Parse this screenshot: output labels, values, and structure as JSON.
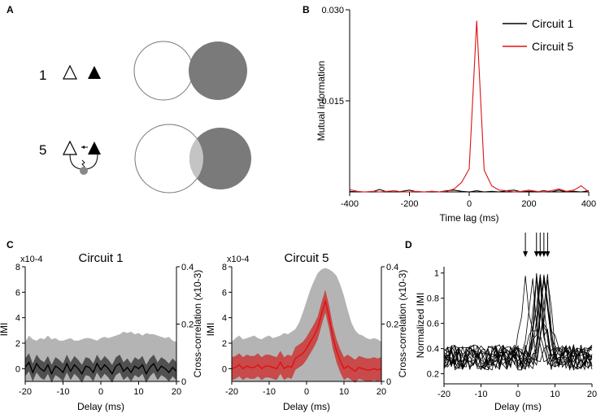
{
  "panels": {
    "a": "A",
    "b": "B",
    "c": "C",
    "d": "D"
  },
  "circuits_a": [
    {
      "number": "1",
      "overlap": "none"
    },
    {
      "number": "5",
      "overlap": "partial"
    }
  ],
  "colors": {
    "circuit1": "#000000",
    "circuit5": "#e01010",
    "venn_fill": "#7a7a7a",
    "band_light": "#b4b4b4",
    "band_dark": "#505050",
    "band_red": "#c84a4a"
  },
  "chart_data": [
    {
      "id": "B",
      "type": "line",
      "title": "",
      "xlabel": "Time lag (ms)",
      "ylabel": "Mutual information",
      "xlim": [
        -400,
        400
      ],
      "ylim": [
        0,
        0.03
      ],
      "xticks": [
        "-400",
        "-200",
        "0",
        "200",
        "400"
      ],
      "yticks": [
        "0.015",
        "0.030"
      ],
      "legend": [
        "Circuit 1",
        "Circuit 5"
      ],
      "legend_position": "top-right",
      "x": [
        -400,
        -375,
        -350,
        -325,
        -300,
        -275,
        -250,
        -225,
        -200,
        -175,
        -150,
        -125,
        -100,
        -75,
        -50,
        -25,
        0,
        25,
        50,
        75,
        100,
        125,
        150,
        175,
        200,
        225,
        250,
        275,
        300,
        325,
        350,
        375,
        400
      ],
      "series": [
        {
          "name": "Circuit 1",
          "color": "#000000",
          "values": [
            0.0001,
            0.0,
            0.0,
            0.0,
            0.0004,
            0.0,
            0.0,
            0.0001,
            0.0003,
            0.0,
            0.0,
            0.0001,
            0.0,
            0.0002,
            0.0003,
            0.0001,
            0.0,
            0.0002,
            0.0,
            0.0001,
            0.0,
            0.0002,
            0.0003,
            0.0,
            0.0001,
            0.0,
            0.0002,
            0.0,
            0.0003,
            0.0,
            0.0001,
            0.0,
            0.0002
          ]
        },
        {
          "name": "Circuit 5",
          "color": "#e01010",
          "values": [
            0.0004,
            0.0001,
            0.0,
            0.0001,
            0.0,
            0.0001,
            0.0002,
            0.0,
            0.0,
            0.0001,
            0.0,
            0.0001,
            0.0,
            0.0001,
            0.0005,
            0.0016,
            0.0038,
            0.0282,
            0.0036,
            0.001,
            0.0003,
            0.0002,
            0.0,
            0.0001,
            0.0003,
            0.0001,
            0.0,
            0.0002,
            0.0005,
            0.0001,
            0.0003,
            0.001,
            0.0
          ]
        }
      ]
    },
    {
      "id": "C1",
      "type": "line",
      "title": "Circuit 1",
      "xlabel": "Delay (ms)",
      "ylabel": "IMI",
      "y2label": "Cross-correlation (x10-3)",
      "yscale_label": "x10-4",
      "xlim": [
        -20,
        20
      ],
      "ylim": [
        -1,
        8
      ],
      "y2lim": [
        0,
        0.4
      ],
      "xticks": [
        "-20",
        "-10",
        "0",
        "10",
        "20"
      ],
      "yticks": [
        "0",
        "2",
        "4",
        "6",
        "8"
      ],
      "y2ticks": [
        "0",
        "0.2",
        "0.4"
      ],
      "x": [
        -20,
        -19,
        -18,
        -17,
        -16,
        -15,
        -14,
        -13,
        -12,
        -11,
        -10,
        -9,
        -8,
        -7,
        -6,
        -5,
        -4,
        -3,
        -2,
        -1,
        0,
        1,
        2,
        3,
        4,
        5,
        6,
        7,
        8,
        9,
        10,
        11,
        12,
        13,
        14,
        15,
        16,
        17,
        18,
        19,
        20
      ],
      "xcorr_upper": [
        2.1,
        2.6,
        2.3,
        2.2,
        2.4,
        2.3,
        2.6,
        2.3,
        2.4,
        2.2,
        2.2,
        2.3,
        2.4,
        2.2,
        2.2,
        2.3,
        2.4,
        2.4,
        2.3,
        2.2,
        2.4,
        2.5,
        2.4,
        2.5,
        2.6,
        2.7,
        2.9,
        2.8,
        2.9,
        2.7,
        2.8,
        2.6,
        2.8,
        2.7,
        2.7,
        2.6,
        2.5,
        2.4,
        2.5,
        2.2,
        2.1
      ],
      "series": [
        {
          "name": "IMI",
          "color": "#000000",
          "values": [
            0.1,
            0.5,
            -0.3,
            0.4,
            0.0,
            -0.2,
            0.3,
            -0.4,
            0.2,
            0.0,
            -0.3,
            0.4,
            -0.2,
            0.3,
            0.0,
            -0.4,
            0.2,
            0.1,
            -0.3,
            0.4,
            -0.1,
            0.3,
            0.0,
            -0.4,
            0.2,
            0.4,
            -0.2,
            0.1,
            -0.3,
            0.2,
            0.0,
            0.3,
            -0.4,
            0.1,
            0.4,
            -0.2,
            0.2,
            0.0,
            -0.3,
            0.1,
            -0.2
          ]
        }
      ],
      "band_halfwidth": 0.7
    },
    {
      "id": "C5",
      "type": "line",
      "title": "Circuit 5",
      "xlabel": "Delay (ms)",
      "ylabel": "IMI",
      "y2label": "Cross-correlation (x10-3)",
      "yscale_label": "x10-4",
      "xlim": [
        -20,
        20
      ],
      "ylim": [
        -1,
        8
      ],
      "y2lim": [
        0,
        0.4
      ],
      "xticks": [
        "-20",
        "-10",
        "0",
        "10",
        "20"
      ],
      "yticks": [
        "0",
        "2",
        "4",
        "6",
        "8"
      ],
      "y2ticks": [
        "0",
        "0.2",
        "0.4"
      ],
      "x": [
        -20,
        -19,
        -18,
        -17,
        -16,
        -15,
        -14,
        -13,
        -12,
        -11,
        -10,
        -9,
        -8,
        -7,
        -6,
        -5,
        -4,
        -3,
        -2,
        -1,
        0,
        1,
        2,
        3,
        4,
        5,
        6,
        7,
        8,
        9,
        10,
        11,
        12,
        13,
        14,
        15,
        16,
        17,
        18,
        19,
        20
      ],
      "xcorr_upper": [
        2.1,
        2.4,
        2.6,
        2.3,
        2.4,
        2.5,
        2.6,
        2.4,
        2.3,
        2.5,
        2.6,
        2.4,
        2.5,
        2.6,
        2.8,
        2.7,
        2.9,
        3.1,
        3.6,
        4.4,
        5.3,
        6.2,
        6.9,
        7.5,
        7.8,
        7.9,
        7.8,
        7.6,
        7.3,
        6.6,
        5.7,
        4.6,
        3.6,
        3.0,
        2.7,
        2.6,
        2.4,
        2.3,
        2.4,
        2.3,
        2.1
      ],
      "series": [
        {
          "name": "IMI",
          "color": "#e01010",
          "values": [
            0.0,
            0.1,
            0.3,
            0.0,
            0.2,
            0.1,
            0.1,
            0.3,
            0.0,
            0.2,
            0.2,
            0.1,
            0.0,
            0.5,
            0.0,
            0.2,
            0.1,
            0.8,
            1.0,
            1.2,
            1.6,
            2.1,
            2.6,
            3.2,
            4.3,
            5.3,
            4.1,
            2.5,
            1.4,
            0.6,
            0.0,
            0.2,
            0.0,
            -0.2,
            0.1,
            0.0,
            -0.1,
            -0.1,
            0.0,
            -0.1,
            0.0
          ]
        }
      ],
      "band_halfwidth": 0.9
    },
    {
      "id": "D",
      "type": "line",
      "title": "",
      "xlabel": "Delay (ms)",
      "ylabel": "Normalized IMI",
      "xlim": [
        -20,
        20
      ],
      "ylim": [
        0.12,
        1.05
      ],
      "xticks": [
        "-20",
        "-10",
        "0",
        "10",
        "20"
      ],
      "yticks": [
        "0.2",
        "0.4",
        "0.6",
        "0.8",
        "1"
      ],
      "arrow_delays": [
        2,
        5,
        6,
        7,
        8
      ],
      "peak_delays": [
        2,
        4,
        5,
        5,
        6,
        6,
        6,
        7,
        7,
        7,
        8,
        8,
        6,
        5,
        7
      ]
    }
  ]
}
